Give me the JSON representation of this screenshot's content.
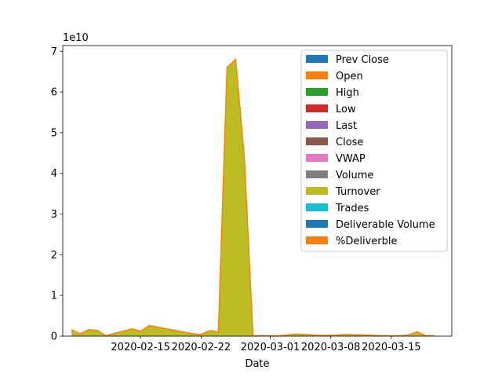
{
  "chart_data": {
    "type": "area",
    "stacked": true,
    "xlabel": "Date",
    "ylabel": "",
    "y_offset_text": "1e10",
    "x_ticks": [
      "2020-02-15",
      "2020-02-22",
      "2020-03-01",
      "2020-03-08",
      "2020-03-15"
    ],
    "y_ticks": [
      "0",
      "1",
      "2",
      "3",
      "4",
      "5",
      "6",
      "7"
    ],
    "xlim": [
      "2020-02-06",
      "2020-03-22"
    ],
    "ylim": [
      0,
      71400000000
    ],
    "legend_position": "upper right",
    "x": [
      "2020-02-07",
      "2020-02-08",
      "2020-02-09",
      "2020-02-10",
      "2020-02-11",
      "2020-02-12",
      "2020-02-13",
      "2020-02-14",
      "2020-02-15",
      "2020-02-16",
      "2020-02-17",
      "2020-02-18",
      "2020-02-19",
      "2020-02-20",
      "2020-02-21",
      "2020-02-22",
      "2020-02-23",
      "2020-02-24",
      "2020-02-25",
      "2020-02-26",
      "2020-02-27",
      "2020-02-28",
      "2020-03-02",
      "2020-03-03",
      "2020-03-04",
      "2020-03-05",
      "2020-03-06",
      "2020-03-07",
      "2020-03-08",
      "2020-03-09",
      "2020-03-10",
      "2020-03-11",
      "2020-03-12",
      "2020-03-13",
      "2020-03-14",
      "2020-03-15",
      "2020-03-16",
      "2020-03-17",
      "2020-03-18",
      "2020-03-19",
      "2020-03-20"
    ],
    "turnover_values": [
      1600000000,
      600000000,
      1600000000,
      1400000000,
      100000000,
      700000000,
      1200000000,
      1800000000,
      1200000000,
      2600000000,
      2200000000,
      1800000000,
      1400000000,
      1000000000,
      600000000,
      400000000,
      1400000000,
      1000000000,
      66000000000,
      68000000000,
      44000000000,
      100000000,
      100000000,
      300000000,
      500000000,
      400000000,
      300000000,
      200000000,
      200000000,
      300000000,
      400000000,
      300000000,
      300000000,
      200000000,
      100000000,
      100000000,
      100000000,
      300000000,
      1100000000,
      100000000,
      100000000
    ],
    "series": [
      {
        "name": "Prev Close",
        "color": "#1f77b4"
      },
      {
        "name": "Open",
        "color": "#ff7f0e"
      },
      {
        "name": "High",
        "color": "#2ca02c"
      },
      {
        "name": "Low",
        "color": "#d62728"
      },
      {
        "name": "Last",
        "color": "#9467bd"
      },
      {
        "name": "Close",
        "color": "#8c564b"
      },
      {
        "name": "VWAP",
        "color": "#e377c2"
      },
      {
        "name": "Volume",
        "color": "#7f7f7f"
      },
      {
        "name": "Turnover",
        "color": "#bcbd22"
      },
      {
        "name": "Trades",
        "color": "#17becf"
      },
      {
        "name": "Deliverable Volume",
        "color": "#1f77b4"
      },
      {
        "name": "%Deliverble",
        "color": "#ff7f0e"
      }
    ]
  }
}
